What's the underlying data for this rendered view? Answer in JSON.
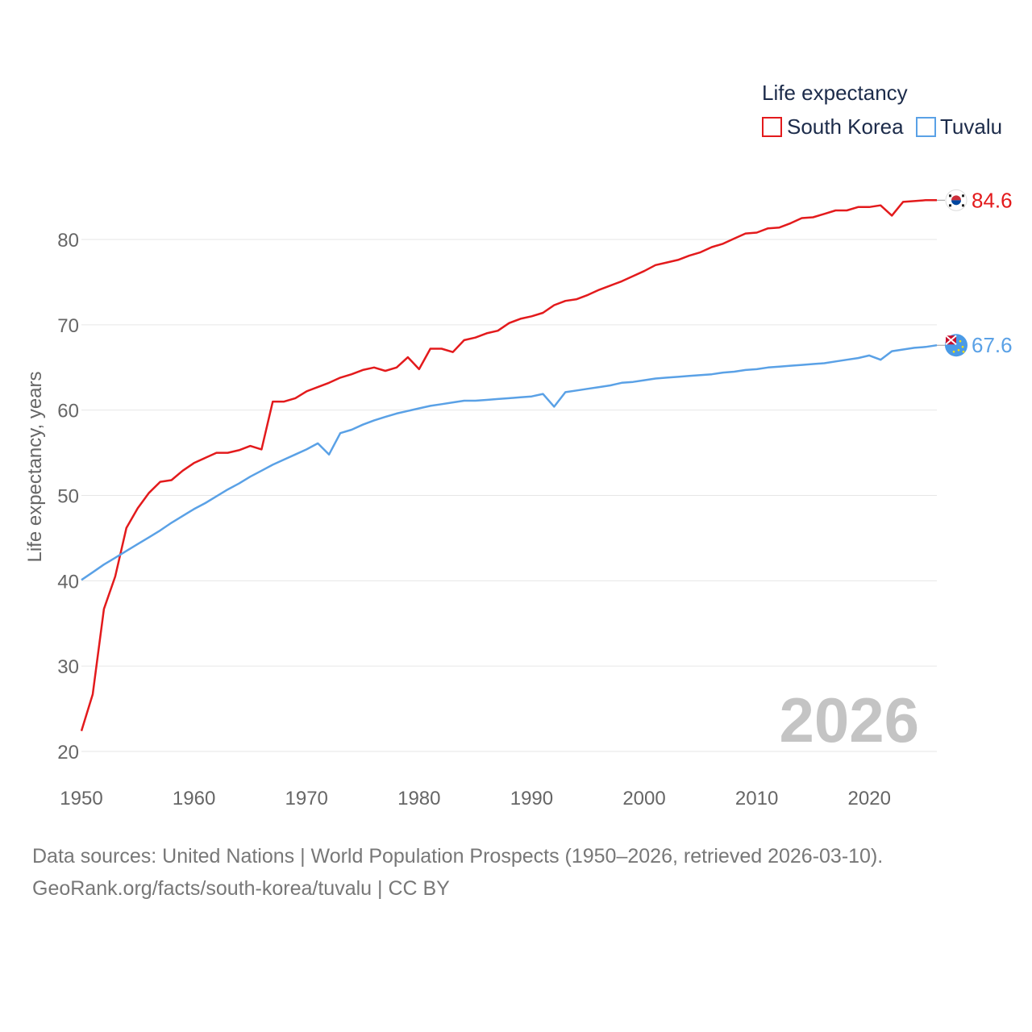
{
  "chart_data": {
    "type": "line",
    "title": "Life expectancy",
    "xlabel": "",
    "ylabel": "Life expectancy, years",
    "xlim": [
      1950,
      2026
    ],
    "ylim": [
      20,
      85
    ],
    "x_ticks": [
      1950,
      1960,
      1970,
      1980,
      1990,
      2000,
      2010,
      2020
    ],
    "y_ticks": [
      20,
      30,
      40,
      50,
      60,
      70,
      80
    ],
    "year_label": "2026",
    "x": [
      1950,
      1951,
      1952,
      1953,
      1954,
      1955,
      1956,
      1957,
      1958,
      1959,
      1960,
      1961,
      1962,
      1963,
      1964,
      1965,
      1966,
      1967,
      1968,
      1969,
      1970,
      1971,
      1972,
      1973,
      1974,
      1975,
      1976,
      1977,
      1978,
      1979,
      1980,
      1981,
      1982,
      1983,
      1984,
      1985,
      1986,
      1987,
      1988,
      1989,
      1990,
      1991,
      1992,
      1993,
      1994,
      1995,
      1996,
      1997,
      1998,
      1999,
      2000,
      2001,
      2002,
      2003,
      2004,
      2005,
      2006,
      2007,
      2008,
      2009,
      2010,
      2011,
      2012,
      2013,
      2014,
      2015,
      2016,
      2017,
      2018,
      2019,
      2020,
      2021,
      2022,
      2023,
      2024,
      2025,
      2026
    ],
    "series": [
      {
        "name": "South Korea",
        "color": "#e31a1c",
        "end_label": "84.6",
        "flag": "south-korea-flag-icon",
        "values": [
          22.4,
          26.7,
          36.7,
          40.5,
          46.2,
          48.5,
          50.3,
          51.6,
          51.8,
          52.9,
          53.8,
          54.4,
          55.0,
          55.0,
          55.3,
          55.8,
          55.4,
          61.0,
          61.0,
          61.4,
          62.2,
          62.7,
          63.2,
          63.8,
          64.2,
          64.7,
          65.0,
          64.6,
          65.0,
          66.2,
          64.8,
          67.2,
          67.2,
          66.8,
          68.2,
          68.5,
          69.0,
          69.3,
          70.2,
          70.7,
          71.0,
          71.4,
          72.3,
          72.8,
          73.0,
          73.5,
          74.1,
          74.6,
          75.1,
          75.7,
          76.3,
          77.0,
          77.3,
          77.6,
          78.1,
          78.5,
          79.1,
          79.5,
          80.1,
          80.7,
          80.8,
          81.3,
          81.4,
          81.9,
          82.5,
          82.6,
          83.0,
          83.4,
          83.4,
          83.8,
          83.8,
          84.0,
          82.8,
          84.4,
          84.5,
          84.6,
          84.6
        ]
      },
      {
        "name": "Tuvalu",
        "color": "#5aa1e6",
        "end_label": "67.6",
        "flag": "tuvalu-flag-icon",
        "values": [
          40.1,
          41.0,
          41.9,
          42.7,
          43.5,
          44.3,
          45.1,
          45.9,
          46.8,
          47.6,
          48.4,
          49.1,
          49.9,
          50.7,
          51.4,
          52.2,
          52.9,
          53.6,
          54.2,
          54.8,
          55.4,
          56.1,
          54.8,
          57.3,
          57.7,
          58.3,
          58.8,
          59.2,
          59.6,
          59.9,
          60.2,
          60.5,
          60.7,
          60.9,
          61.1,
          61.1,
          61.2,
          61.3,
          61.4,
          61.5,
          61.6,
          61.9,
          60.4,
          62.1,
          62.3,
          62.5,
          62.7,
          62.9,
          63.2,
          63.3,
          63.5,
          63.7,
          63.8,
          63.9,
          64.0,
          64.1,
          64.2,
          64.4,
          64.5,
          64.7,
          64.8,
          65.0,
          65.1,
          65.2,
          65.3,
          65.4,
          65.5,
          65.7,
          65.9,
          66.1,
          66.4,
          65.9,
          66.9,
          67.1,
          67.3,
          67.4,
          67.6
        ]
      }
    ]
  },
  "footer": {
    "line1": "Data sources: United Nations | World Population Prospects (1950–2026, retrieved 2026-03-10).",
    "line2": "GeoRank.org/facts/south-korea/tuvalu | CC BY"
  }
}
